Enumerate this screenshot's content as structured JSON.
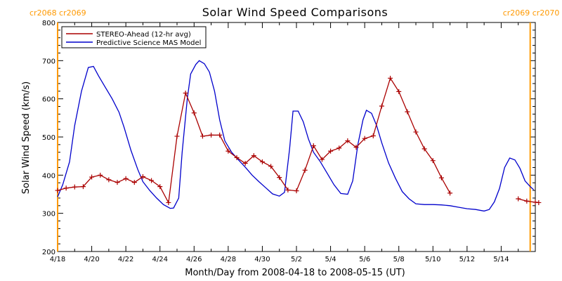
{
  "chart_data": {
    "type": "line",
    "title": "Solar Wind Speed Comparisons",
    "xlabel": "Month/Day from 2008-04-18 to 2008-05-15 (UT)",
    "ylabel": "Solar Wind Speed (km/s)",
    "xlim": [
      "2008-04-18",
      "2008-05-16"
    ],
    "ylim": [
      200,
      800
    ],
    "x_ticks": [
      "4/18",
      "4/20",
      "4/22",
      "4/24",
      "4/26",
      "4/28",
      "4/30",
      "5/2",
      "5/4",
      "5/6",
      "5/8",
      "5/10",
      "5/12",
      "5/14"
    ],
    "y_ticks": [
      200,
      300,
      400,
      500,
      600,
      700,
      800
    ],
    "legend_position": "top-left",
    "grid": false,
    "carrington_markers": [
      {
        "date": "2008-04-18",
        "label_left": "cr2068",
        "label_right": "cr2069",
        "color": "#ff9900"
      },
      {
        "date": "2008-05-15.7",
        "label_left": "cr2069",
        "label_right": "cr2070",
        "color": "#ff9900"
      }
    ],
    "series": [
      {
        "name": "STEREO-Ahead (12-hr avg)",
        "color": "#aa0000",
        "marker": "plus",
        "segments": [
          [
            [
              "2008-04-18.0",
              360
            ],
            [
              "2008-04-18.5",
              366
            ],
            [
              "2008-04-19.0",
              369
            ],
            [
              "2008-04-19.5",
              370
            ],
            [
              "2008-04-20.0",
              395
            ],
            [
              "2008-04-20.5",
              400
            ],
            [
              "2008-04-21.0",
              388
            ],
            [
              "2008-04-21.5",
              381
            ],
            [
              "2008-04-22.0",
              391
            ],
            [
              "2008-04-22.5",
              381
            ],
            [
              "2008-04-23.0",
              396
            ],
            [
              "2008-04-23.5",
              386
            ],
            [
              "2008-04-24.0",
              370
            ],
            [
              "2008-04-24.5",
              328
            ],
            [
              "2008-04-25.0",
              502
            ],
            [
              "2008-04-25.5",
              615
            ],
            [
              "2008-04-26.0",
              563
            ],
            [
              "2008-04-26.5",
              502
            ],
            [
              "2008-04-27.0",
              505
            ],
            [
              "2008-04-27.5",
              505
            ],
            [
              "2008-04-28.0",
              463
            ],
            [
              "2008-04-28.5",
              446
            ],
            [
              "2008-04-29.0",
              431
            ],
            [
              "2008-04-29.5",
              451
            ],
            [
              "2008-04-30.0",
              435
            ],
            [
              "2008-04-30.5",
              423
            ],
            [
              "2008-05-01.0",
              394
            ],
            [
              "2008-05-01.5",
              361
            ],
            [
              "2008-05-02.0",
              359
            ],
            [
              "2008-05-02.5",
              413
            ],
            [
              "2008-05-03.0",
              477
            ],
            [
              "2008-05-03.5",
              441
            ],
            [
              "2008-05-04.0",
              463
            ],
            [
              "2008-05-04.5",
              471
            ],
            [
              "2008-05-05.0",
              490
            ],
            [
              "2008-05-05.5",
              473
            ],
            [
              "2008-05-06.0",
              496
            ],
            [
              "2008-05-06.5",
              503
            ],
            [
              "2008-05-07.0",
              581
            ],
            [
              "2008-05-07.5",
              654
            ],
            [
              "2008-05-08.0",
              619
            ],
            [
              "2008-05-08.5",
              566
            ],
            [
              "2008-05-09.0",
              513
            ],
            [
              "2008-05-09.5",
              469
            ],
            [
              "2008-05-10.0",
              438
            ],
            [
              "2008-05-10.5",
              393
            ],
            [
              "2008-05-11.0",
              353
            ]
          ],
          [
            [
              "2008-05-15.0",
              338
            ],
            [
              "2008-05-15.5",
              332
            ],
            [
              "2008-05-16.0",
              329
            ],
            [
              "2008-05-16.2",
              328
            ]
          ]
        ]
      },
      {
        "name": "Predictive Science MAS Model",
        "color": "#0000cc",
        "marker": "none",
        "points": [
          [
            "2008-04-18.0",
            343
          ],
          [
            "2008-04-18.3",
            375
          ],
          [
            "2008-04-18.7",
            435
          ],
          [
            "2008-04-19.0",
            530
          ],
          [
            "2008-04-19.4",
            620
          ],
          [
            "2008-04-19.8",
            682
          ],
          [
            "2008-04-20.1",
            685
          ],
          [
            "2008-04-20.4",
            660
          ],
          [
            "2008-04-20.8",
            630
          ],
          [
            "2008-04-21.2",
            600
          ],
          [
            "2008-04-21.6",
            565
          ],
          [
            "2008-04-21.9",
            525
          ],
          [
            "2008-04-22.3",
            465
          ],
          [
            "2008-04-22.7",
            415
          ],
          [
            "2008-04-23.0",
            383
          ],
          [
            "2008-04-23.4",
            360
          ],
          [
            "2008-04-23.8",
            340
          ],
          [
            "2008-04-24.2",
            323
          ],
          [
            "2008-04-24.6",
            313
          ],
          [
            "2008-04-24.8",
            314
          ],
          [
            "2008-04-25.1",
            340
          ],
          [
            "2008-04-25.3",
            460
          ],
          [
            "2008-04-25.6",
            600
          ],
          [
            "2008-04-25.8",
            665
          ],
          [
            "2008-04-26.1",
            690
          ],
          [
            "2008-04-26.3",
            700
          ],
          [
            "2008-04-26.6",
            692
          ],
          [
            "2008-04-26.9",
            670
          ],
          [
            "2008-04-27.2",
            620
          ],
          [
            "2008-04-27.5",
            545
          ],
          [
            "2008-04-27.8",
            490
          ],
          [
            "2008-04-28.2",
            460
          ],
          [
            "2008-04-28.6",
            440
          ],
          [
            "2008-04-29.0",
            421
          ],
          [
            "2008-04-29.4",
            400
          ],
          [
            "2008-04-29.8",
            383
          ],
          [
            "2008-04-30.2",
            367
          ],
          [
            "2008-04-30.6",
            351
          ],
          [
            "2008-05-01.0",
            345
          ],
          [
            "2008-05-01.3",
            355
          ],
          [
            "2008-05-01.6",
            470
          ],
          [
            "2008-05-01.8",
            568
          ],
          [
            "2008-05-02.1",
            568
          ],
          [
            "2008-05-02.4",
            540
          ],
          [
            "2008-05-02.7",
            495
          ],
          [
            "2008-05-03.0",
            460
          ],
          [
            "2008-05-03.4",
            435
          ],
          [
            "2008-05-03.8",
            405
          ],
          [
            "2008-05-04.2",
            375
          ],
          [
            "2008-05-04.6",
            352
          ],
          [
            "2008-05-05.0",
            350
          ],
          [
            "2008-05-05.3",
            385
          ],
          [
            "2008-05-05.6",
            480
          ],
          [
            "2008-05-05.9",
            545
          ],
          [
            "2008-05-06.1",
            570
          ],
          [
            "2008-05-06.4",
            562
          ],
          [
            "2008-05-06.7",
            530
          ],
          [
            "2008-05-07.0",
            485
          ],
          [
            "2008-05-07.4",
            432
          ],
          [
            "2008-05-07.8",
            392
          ],
          [
            "2008-05-08.2",
            357
          ],
          [
            "2008-05-08.6",
            338
          ],
          [
            "2008-05-09.0",
            325
          ],
          [
            "2008-05-09.5",
            323
          ],
          [
            "2008-05-10.0",
            323
          ],
          [
            "2008-05-10.5",
            322
          ],
          [
            "2008-05-11.0",
            320
          ],
          [
            "2008-05-11.5",
            316
          ],
          [
            "2008-05-12.0",
            312
          ],
          [
            "2008-05-12.5",
            310
          ],
          [
            "2008-05-13.0",
            306
          ],
          [
            "2008-05-13.3",
            310
          ],
          [
            "2008-05-13.6",
            330
          ],
          [
            "2008-05-13.9",
            365
          ],
          [
            "2008-05-14.2",
            420
          ],
          [
            "2008-05-14.5",
            445
          ],
          [
            "2008-05-14.8",
            440
          ],
          [
            "2008-05-15.1",
            418
          ],
          [
            "2008-05-15.4",
            385
          ],
          [
            "2008-05-15.7",
            370
          ],
          [
            "2008-05-15.9",
            362
          ]
        ]
      }
    ]
  }
}
